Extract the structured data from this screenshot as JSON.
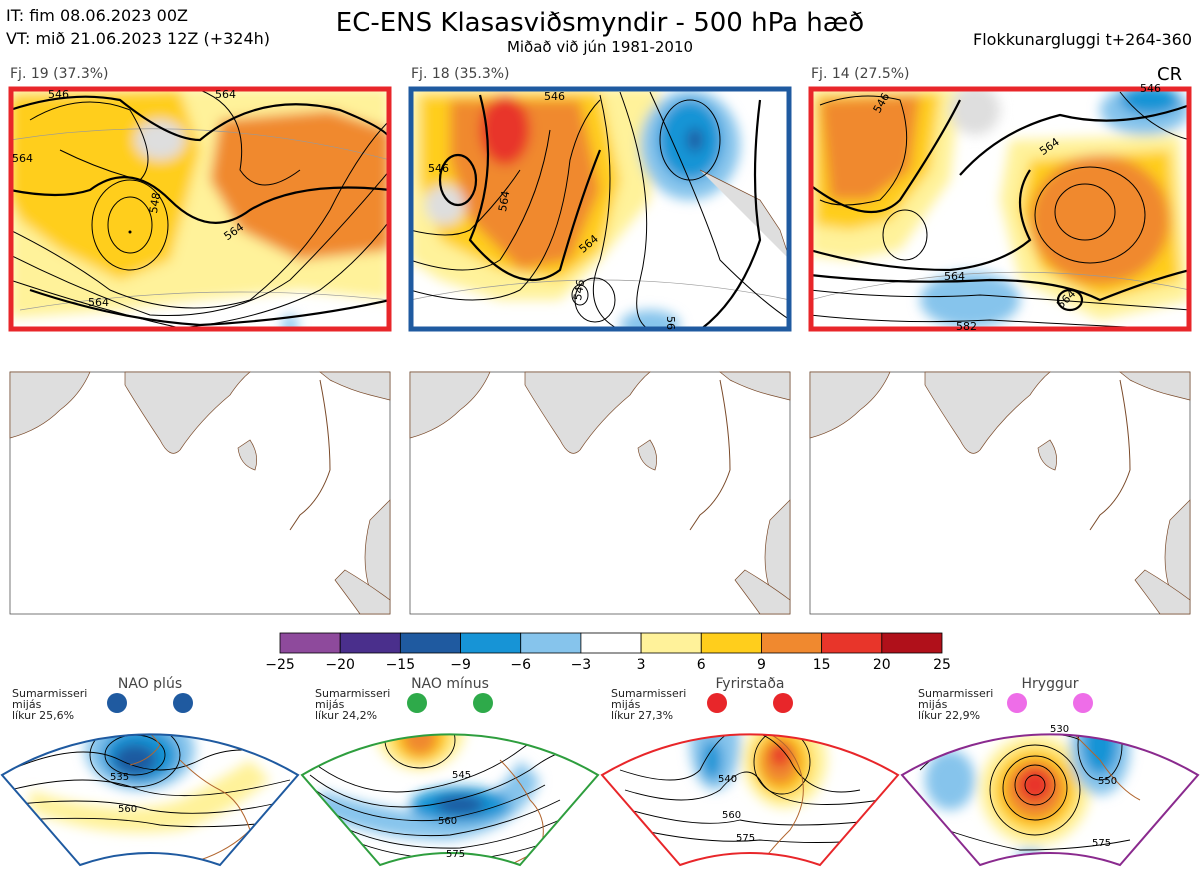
{
  "header": {
    "init_time": "IT: fim 08.06.2023 00Z",
    "valid_time": "VT: mið 21.06.2023 12Z  (+324h)",
    "title": "EC-ENS Klasasviðsmyndir - 500 hPa hæð",
    "subtitle": "Miðað við jún 1981-2010",
    "window": "Flokkunargluggi t+264-360"
  },
  "clusters": [
    {
      "label": "Fj. 19 (37.3%)",
      "border_color": "#e8262a",
      "contour_labels": [
        "546",
        "564",
        "564",
        "548",
        "564",
        "564"
      ]
    },
    {
      "label": "Fj. 18 (35.3%)",
      "border_color": "#1f5aa0",
      "contour_labels": [
        "546",
        "546",
        "564",
        "564",
        "546",
        "56"
      ]
    },
    {
      "label": "Fj. 14 (27.5%)",
      "border_color": "#e8262a",
      "extra": "CR",
      "contour_labels": [
        "546",
        "564",
        "564",
        "564",
        "582",
        "546"
      ]
    }
  ],
  "colors": {
    "red_frame": "#e8262a",
    "blue_frame": "#1f5aa0",
    "green_frame": "#2e9e3e",
    "purple_frame": "#8a2a8e",
    "land": "#dedede",
    "coast": "#7a4a2a"
  },
  "chart_data": {
    "type": "heatmap",
    "legend": {
      "ticks": [
        "−25",
        "−20",
        "−15",
        "−9",
        "−6",
        "−3",
        "3",
        "6",
        "9",
        "15",
        "20",
        "25"
      ],
      "colors": [
        "#8e4a9c",
        "#4a2f8c",
        "#1f5aa0",
        "#1794d6",
        "#86c4ec",
        "#ffffff",
        "#fff29a",
        "#ffce1c",
        "#f0892f",
        "#e8352a",
        "#b0101a"
      ]
    },
    "regimes": [
      {
        "name": "NAO plús",
        "season": "Sumarmisseri",
        "mean": "mijás",
        "likelihood": "líkur 25,6%",
        "dot_color": "#1f5aa0",
        "frame_color": "#1f5aa0",
        "contour_labels": [
          "535",
          "560"
        ]
      },
      {
        "name": "NAO mínus",
        "season": "Sumarmisseri",
        "mean": "mijás",
        "likelihood": "líkur 24,2%",
        "dot_color": "#2eaa4a",
        "frame_color": "#2e9e3e",
        "contour_labels": [
          "545",
          "560",
          "575"
        ]
      },
      {
        "name": "Fyrirstaða",
        "season": "Sumarmisseri",
        "mean": "mijás",
        "likelihood": "líkur 27,3%",
        "dot_color": "#e8262a",
        "frame_color": "#e8262a",
        "contour_labels": [
          "540",
          "560",
          "575"
        ]
      },
      {
        "name": "Hryggur",
        "season": "Sumarmisseri",
        "mean": "mijás",
        "likelihood": "líkur 22,9%",
        "dot_color": "#ee6de8",
        "frame_color": "#8a2a8e",
        "contour_labels": [
          "530",
          "550",
          "575"
        ]
      }
    ]
  }
}
